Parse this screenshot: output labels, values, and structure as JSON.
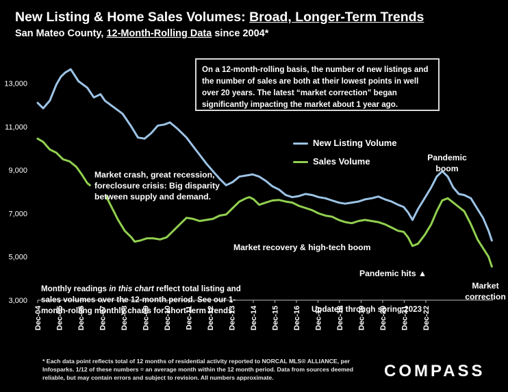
{
  "header": {
    "title_prefix": "New Listing & Home Sales Volumes: ",
    "title_underlined": "Broad, Longer-Term Trends",
    "subtitle_prefix": "San Mateo County, ",
    "subtitle_underlined": "12-Month-Rolling Data",
    "subtitle_suffix": " since 2004*"
  },
  "callout": "On a 12-month-rolling basis, the number of new listings and the number of sales are both at their lowest points in well over 20 years. The latest “market correction” began significantly impacting the market about 1 year ago.",
  "annotations": {
    "crash_line1": "Market crash,  great recession,",
    "crash_line2": "foreclosure crisis: Big disparity",
    "crash_line3": "between supply and demand.",
    "recovery": "Market recovery & high-tech boom",
    "pandemic_boom_line1": "Pandemic",
    "pandemic_boom_line2": "boom",
    "pandemic_hits": "Pandemic hits ▲",
    "correction_line1": "Market",
    "correction_line2": "correction",
    "updated": "Updated through spring 2023",
    "monthly_prefix": "Monthly readings ",
    "monthly_italic": "in this chart",
    "monthly_suffix": " reflect total listing and sales volumes over the 12-month period. See our 1-month-rolling monthly charts for short-term trends."
  },
  "footnote": "* Each data point reflects total of 12 months of residential activity reported to NORCAL MLS® ALLIANCE, per Infosparks. 1/12 of these numbers = an average month within the 12 month period. Data from sources deemed reliable, but may contain errors and subject to revision. All numbers approximate.",
  "brand": "COMPASS",
  "colors": {
    "background": "#000000",
    "listings": "#9dc3e6",
    "sales": "#92d050",
    "text": "#ffffff"
  },
  "chart_data": {
    "type": "line",
    "ylim": [
      3000,
      14000
    ],
    "ytick_values": [
      3000,
      5000,
      7000,
      9000,
      11000,
      13000
    ],
    "ytick_labels": [
      "3,000",
      "5,000",
      "7,000",
      "9,000",
      "11,000",
      "13,000"
    ],
    "xtick_labels": [
      "Dec-04",
      "Dec-05",
      "Dec-06",
      "Dec-07",
      "Dec-08",
      "Dec-09",
      "Dec-10",
      "Dec-11",
      "Dec-12",
      "Dec-13",
      "Dec-14",
      "Dec-15",
      "Dec-16",
      "Dec-17",
      "Dec-18",
      "Dec-19",
      "Dec-20",
      "Dec-21",
      "Dec-22"
    ],
    "series": [
      {
        "name": "New Listing Volume",
        "color": "#9dc3e6",
        "points": [
          [
            2004.95,
            12100
          ],
          [
            2005.2,
            11850
          ],
          [
            2005.5,
            12200
          ],
          [
            2005.8,
            12950
          ],
          [
            2006.0,
            13300
          ],
          [
            2006.2,
            13500
          ],
          [
            2006.45,
            13650
          ],
          [
            2006.8,
            13100
          ],
          [
            2007.2,
            12800
          ],
          [
            2007.5,
            12350
          ],
          [
            2007.8,
            12500
          ],
          [
            2008.0,
            12200
          ],
          [
            2008.4,
            11900
          ],
          [
            2008.8,
            11600
          ],
          [
            2009.2,
            11000
          ],
          [
            2009.5,
            10500
          ],
          [
            2009.8,
            10450
          ],
          [
            2010.1,
            10700
          ],
          [
            2010.4,
            11050
          ],
          [
            2010.7,
            11100
          ],
          [
            2010.95,
            11200
          ],
          [
            2011.3,
            10900
          ],
          [
            2011.7,
            10500
          ],
          [
            2012.0,
            10100
          ],
          [
            2012.3,
            9700
          ],
          [
            2012.6,
            9300
          ],
          [
            2012.9,
            8950
          ],
          [
            2013.2,
            8600
          ],
          [
            2013.5,
            8300
          ],
          [
            2013.8,
            8450
          ],
          [
            2014.1,
            8700
          ],
          [
            2014.4,
            8750
          ],
          [
            2014.7,
            8800
          ],
          [
            2015.0,
            8700
          ],
          [
            2015.3,
            8500
          ],
          [
            2015.6,
            8250
          ],
          [
            2015.9,
            8100
          ],
          [
            2016.2,
            7850
          ],
          [
            2016.5,
            7750
          ],
          [
            2016.8,
            7800
          ],
          [
            2017.1,
            7900
          ],
          [
            2017.4,
            7850
          ],
          [
            2017.7,
            7750
          ],
          [
            2018.0,
            7700
          ],
          [
            2018.3,
            7600
          ],
          [
            2018.6,
            7500
          ],
          [
            2018.9,
            7450
          ],
          [
            2019.2,
            7500
          ],
          [
            2019.5,
            7550
          ],
          [
            2019.8,
            7650
          ],
          [
            2020.1,
            7700
          ],
          [
            2020.4,
            7780
          ],
          [
            2020.7,
            7650
          ],
          [
            2021.0,
            7550
          ],
          [
            2021.3,
            7400
          ],
          [
            2021.55,
            7300
          ],
          [
            2021.75,
            7050
          ],
          [
            2021.95,
            6700
          ],
          [
            2022.2,
            7200
          ],
          [
            2022.5,
            7700
          ],
          [
            2022.8,
            8200
          ],
          [
            2023.05,
            8700
          ],
          [
            2023.3,
            8950
          ],
          [
            2023.55,
            8700
          ],
          [
            2023.8,
            8200
          ],
          [
            2024.05,
            7900
          ],
          [
            2024.3,
            7850
          ],
          [
            2024.6,
            7700
          ],
          [
            2024.9,
            7200
          ],
          [
            2025.15,
            6800
          ],
          [
            2025.4,
            6200
          ],
          [
            2025.55,
            5750
          ]
        ]
      },
      {
        "name": "Sales Volume",
        "color": "#92d050",
        "points": [
          [
            2004.95,
            10450
          ],
          [
            2005.2,
            10300
          ],
          [
            2005.5,
            9950
          ],
          [
            2005.8,
            9800
          ],
          [
            2006.1,
            9500
          ],
          [
            2006.4,
            9400
          ],
          [
            2006.7,
            9150
          ],
          [
            2006.95,
            8800
          ],
          [
            2007.2,
            8400
          ],
          [
            2007.32,
            8300
          ],
          [
            null,
            null
          ],
          [
            2008.05,
            7800
          ],
          [
            2008.3,
            7300
          ],
          [
            2008.6,
            6700
          ],
          [
            2008.9,
            6200
          ],
          [
            2009.2,
            5900
          ],
          [
            2009.35,
            5700
          ],
          [
            2009.6,
            5750
          ],
          [
            2009.9,
            5850
          ],
          [
            2010.2,
            5850
          ],
          [
            2010.5,
            5800
          ],
          [
            2010.8,
            5900
          ],
          [
            2011.1,
            6200
          ],
          [
            2011.4,
            6500
          ],
          [
            2011.7,
            6800
          ],
          [
            2012.0,
            6750
          ],
          [
            2012.3,
            6650
          ],
          [
            2012.6,
            6700
          ],
          [
            2012.9,
            6750
          ],
          [
            2013.2,
            6900
          ],
          [
            2013.5,
            6950
          ],
          [
            2013.8,
            7250
          ],
          [
            2014.1,
            7550
          ],
          [
            2014.4,
            7700
          ],
          [
            2014.55,
            7750
          ],
          [
            2014.75,
            7650
          ],
          [
            2015.0,
            7400
          ],
          [
            2015.3,
            7500
          ],
          [
            2015.6,
            7600
          ],
          [
            2015.9,
            7620
          ],
          [
            2016.2,
            7550
          ],
          [
            2016.5,
            7500
          ],
          [
            2016.8,
            7350
          ],
          [
            2017.1,
            7250
          ],
          [
            2017.4,
            7150
          ],
          [
            2017.7,
            7000
          ],
          [
            2018.0,
            6900
          ],
          [
            2018.3,
            6850
          ],
          [
            2018.6,
            6700
          ],
          [
            2018.9,
            6600
          ],
          [
            2019.2,
            6550
          ],
          [
            2019.5,
            6650
          ],
          [
            2019.8,
            6700
          ],
          [
            2020.1,
            6650
          ],
          [
            2020.4,
            6600
          ],
          [
            2020.7,
            6500
          ],
          [
            2021.0,
            6350
          ],
          [
            2021.3,
            6200
          ],
          [
            2021.55,
            6150
          ],
          [
            2021.75,
            5900
          ],
          [
            2021.95,
            5500
          ],
          [
            2022.2,
            5600
          ],
          [
            2022.5,
            6000
          ],
          [
            2022.8,
            6500
          ],
          [
            2023.05,
            7100
          ],
          [
            2023.3,
            7600
          ],
          [
            2023.55,
            7700
          ],
          [
            2023.8,
            7500
          ],
          [
            2024.05,
            7300
          ],
          [
            2024.3,
            7100
          ],
          [
            2024.6,
            6500
          ],
          [
            2024.9,
            5800
          ],
          [
            2025.15,
            5400
          ],
          [
            2025.4,
            5000
          ],
          [
            2025.55,
            4550
          ]
        ]
      }
    ]
  }
}
